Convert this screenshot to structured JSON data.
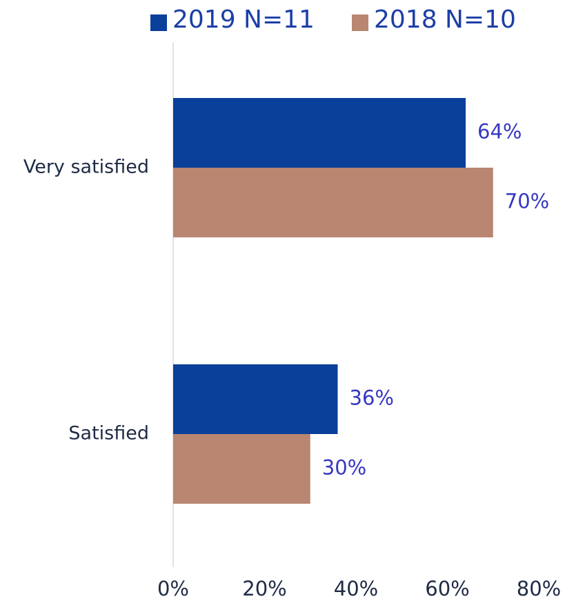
{
  "chart_data": {
    "type": "hbar",
    "categories": [
      "Very satisfied",
      "Satisfied"
    ],
    "series": [
      {
        "name": "2019 N=11",
        "color": "#0a3f9a",
        "values": [
          64,
          36
        ],
        "value_labels": [
          "64%",
          "36%"
        ]
      },
      {
        "name": "2018 N=10",
        "color": "#b88671",
        "values": [
          70,
          30
        ],
        "value_labels": [
          "70%",
          "30%"
        ]
      }
    ],
    "xlim": [
      0,
      80
    ],
    "xticks": [
      {
        "value": 0,
        "label": "0%"
      },
      {
        "value": 20,
        "label": "20%"
      },
      {
        "value": 40,
        "label": "40%"
      },
      {
        "value": 60,
        "label": "60%"
      },
      {
        "value": 80,
        "label": "80%"
      }
    ],
    "legend": "top"
  }
}
